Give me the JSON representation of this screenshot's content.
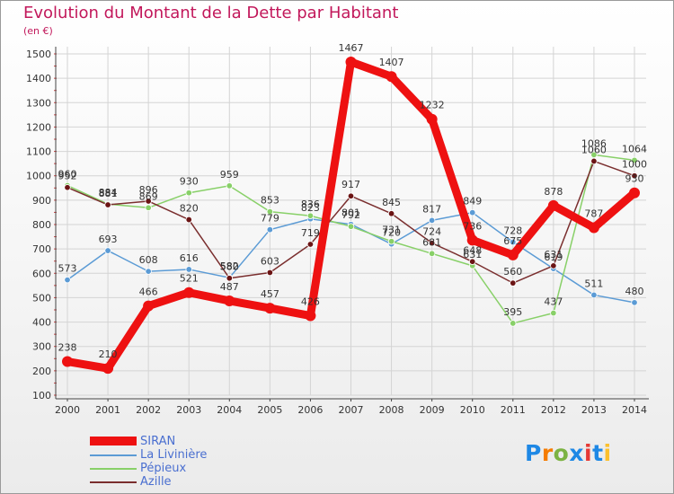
{
  "chart_data": {
    "type": "line",
    "title": "Evolution du Montant de la Dette par Habitant",
    "unit_label": "(en €)",
    "xlabel": "",
    "ylabel": "",
    "x": [
      "2000",
      "2001",
      "2002",
      "2003",
      "2004",
      "2005",
      "2006",
      "2007",
      "2008",
      "2009",
      "2010",
      "2011",
      "2012",
      "2013",
      "2014"
    ],
    "ylim": [
      100,
      1500
    ],
    "yticks": [
      100,
      200,
      300,
      400,
      500,
      600,
      700,
      800,
      900,
      1000,
      1100,
      1200,
      1300,
      1400,
      1500
    ],
    "grid": true,
    "legend_position": "bottom-left",
    "series": [
      {
        "name": "La Livinière",
        "color": "#5b9bd5",
        "marker_color": "#5b9bd5",
        "values": [
          573,
          693,
          608,
          616,
          582,
          779,
          823,
          801,
          720,
          817,
          849,
          728,
          619,
          511,
          480
        ],
        "labels": [
          "573",
          "693",
          "608",
          "616",
          "582",
          "779",
          "823",
          "801",
          "720",
          "817",
          "849",
          "728",
          "619",
          "511",
          "480"
        ]
      },
      {
        "name": "Pépieux",
        "color": "#88d068",
        "marker_color": "#88d068",
        "values": [
          960,
          884,
          869,
          930,
          959,
          853,
          836,
          792,
          731,
          681,
          631,
          395,
          437,
          1086,
          1064
        ],
        "labels": [
          "960",
          "884",
          "869",
          "930",
          "959",
          "853",
          "836",
          "792",
          "731",
          "681",
          "631",
          "395",
          "437",
          "1086",
          "1064"
        ]
      },
      {
        "name": "Azille",
        "color": "#7a2e2e",
        "marker_color": "#6b1414",
        "values": [
          952,
          881,
          896,
          820,
          580,
          603,
          719,
          917,
          845,
          724,
          648,
          560,
          631,
          1060,
          1000
        ],
        "labels": [
          "952",
          "881",
          "896",
          "820",
          "580",
          "603",
          "719",
          "917",
          "845",
          "724",
          "648",
          "560",
          "631",
          "1060",
          "1000"
        ]
      },
      {
        "name": "SIRAN",
        "color": "#ee1111",
        "marker_color": "#ee1111",
        "values": [
          238,
          210,
          466,
          521,
          487,
          457,
          426,
          1467,
          1407,
          1232,
          736,
          675,
          878,
          787,
          930
        ],
        "labels": [
          "238",
          "210",
          "466",
          "521",
          "487",
          "457",
          "426",
          "1467",
          "1407",
          "1232",
          "736",
          "675",
          "878",
          "787",
          "930"
        ]
      }
    ]
  },
  "legend": {
    "items": [
      {
        "label": "SIRAN",
        "color": "#ee1111"
      },
      {
        "label": "La Livinière",
        "color": "#5b9bd5"
      },
      {
        "label": "Pépieux",
        "color": "#88d068"
      },
      {
        "label": "Azille",
        "color": "#7a2e2e"
      }
    ]
  },
  "logo": {
    "letters": [
      "P",
      "r",
      "o",
      "x",
      "i",
      "t",
      "i"
    ],
    "colors": [
      "#1e88e5",
      "#f57c00",
      "#7cb342",
      "#1e88e5",
      "#e53935",
      "#1e88e5",
      "#fbc02d"
    ]
  }
}
